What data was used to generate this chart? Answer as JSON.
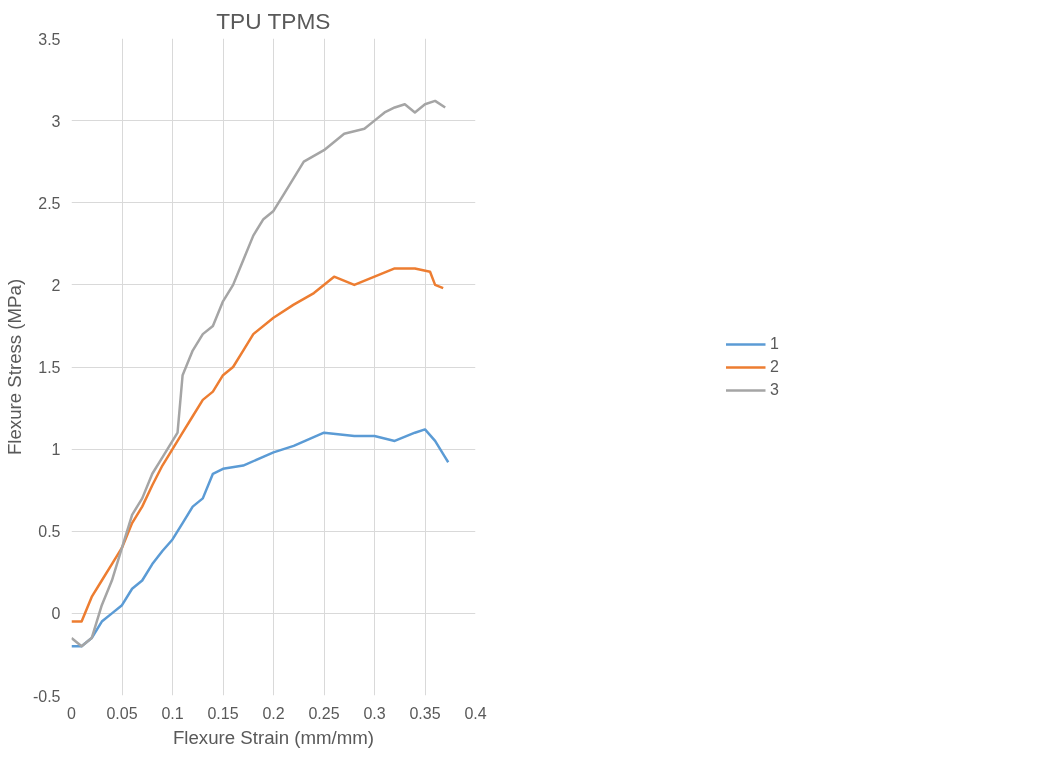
{
  "chart_data": {
    "type": "line",
    "title": "TPU TPMS",
    "xlabel": "Flexure Strain (mm/mm)",
    "ylabel": "Flexure Stress (MPa)",
    "xlim": [
      0,
      0.4
    ],
    "xticks": [
      0,
      0.05,
      0.1,
      0.15,
      0.2,
      0.25,
      0.3,
      0.35,
      0.4
    ],
    "ylim": [
      -0.5,
      3.5
    ],
    "yticks": [
      -0.5,
      0,
      0.5,
      1,
      1.5,
      2,
      2.5,
      3,
      3.5
    ],
    "grid": true,
    "legend": "right",
    "marker": "none",
    "line_style": "solid",
    "series": [
      {
        "name": "1",
        "color": "#5b9bd5",
        "x": [
          0,
          0.01,
          0.02,
          0.03,
          0.04,
          0.05,
          0.06,
          0.07,
          0.08,
          0.09,
          0.1,
          0.11,
          0.12,
          0.13,
          0.14,
          0.15,
          0.17,
          0.2,
          0.22,
          0.25,
          0.28,
          0.3,
          0.32,
          0.34,
          0.35,
          0.36,
          0.37,
          0.373
        ],
        "values": [
          -0.2,
          -0.2,
          -0.15,
          -0.05,
          0,
          0.05,
          0.15,
          0.2,
          0.3,
          0.38,
          0.45,
          0.55,
          0.65,
          0.7,
          0.85,
          0.88,
          0.9,
          0.98,
          1.02,
          1.1,
          1.08,
          1.08,
          1.05,
          1.1,
          1.12,
          1.05,
          0.95,
          0.92
        ]
      },
      {
        "name": "2",
        "color": "#ed7d31",
        "x": [
          0,
          0.01,
          0.02,
          0.03,
          0.04,
          0.05,
          0.06,
          0.07,
          0.08,
          0.09,
          0.1,
          0.11,
          0.12,
          0.13,
          0.14,
          0.15,
          0.16,
          0.17,
          0.18,
          0.2,
          0.22,
          0.24,
          0.26,
          0.28,
          0.3,
          0.32,
          0.34,
          0.355,
          0.36,
          0.368
        ],
        "values": [
          -0.05,
          -0.05,
          0.1,
          0.2,
          0.3,
          0.4,
          0.55,
          0.65,
          0.78,
          0.9,
          1.0,
          1.1,
          1.2,
          1.3,
          1.35,
          1.45,
          1.5,
          1.6,
          1.7,
          1.8,
          1.88,
          1.95,
          2.05,
          2.0,
          2.05,
          2.1,
          2.1,
          2.08,
          2.0,
          1.98
        ]
      },
      {
        "name": "3",
        "color": "#a5a5a5",
        "x": [
          0,
          0.01,
          0.02,
          0.03,
          0.04,
          0.05,
          0.06,
          0.07,
          0.08,
          0.09,
          0.1,
          0.105,
          0.11,
          0.12,
          0.13,
          0.14,
          0.15,
          0.16,
          0.17,
          0.18,
          0.19,
          0.2,
          0.21,
          0.22,
          0.23,
          0.25,
          0.27,
          0.29,
          0.3,
          0.31,
          0.32,
          0.33,
          0.34,
          0.35,
          0.36,
          0.37
        ],
        "values": [
          -0.15,
          -0.2,
          -0.15,
          0.05,
          0.2,
          0.4,
          0.6,
          0.7,
          0.85,
          0.95,
          1.05,
          1.1,
          1.45,
          1.6,
          1.7,
          1.75,
          1.9,
          2.0,
          2.15,
          2.3,
          2.4,
          2.45,
          2.55,
          2.65,
          2.75,
          2.82,
          2.92,
          2.95,
          3.0,
          3.05,
          3.08,
          3.1,
          3.05,
          3.1,
          3.12,
          3.08
        ]
      }
    ]
  }
}
